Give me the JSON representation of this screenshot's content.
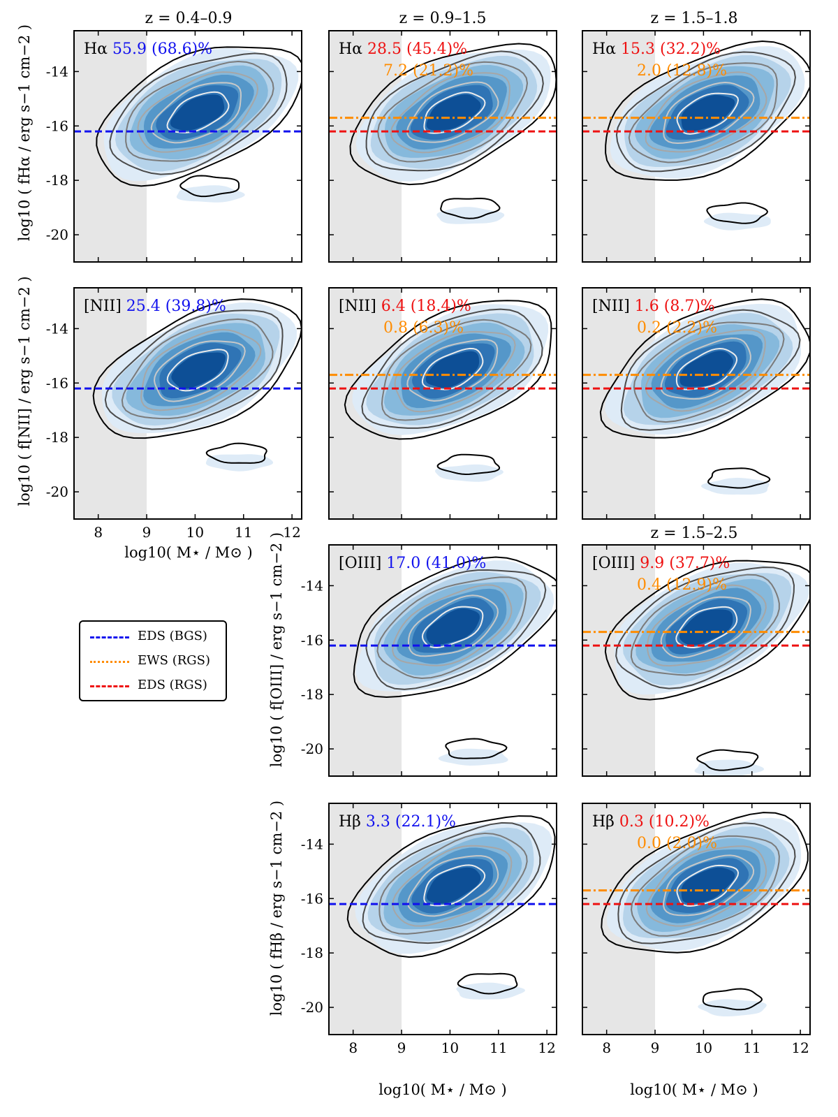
{
  "figure": {
    "colors": {
      "eds_bgs": "#1111ee",
      "ews_rgs": "#ff8c00",
      "eds_rgs": "#ee1111",
      "shade": "#e6e6e6",
      "fill_levels": [
        "#deebf7",
        "#b6d3ea",
        "#86b9dc",
        "#5597c9",
        "#2f74b5",
        "#0d4f96"
      ],
      "contour_levels": [
        "#000000",
        "#4a4a4a",
        "#7a7a7a",
        "#a6a6a6",
        "#c8c8c8",
        "#ececec"
      ]
    },
    "legend": [
      {
        "label": "EDS (BGS)",
        "style": "dashed",
        "color_key": "eds_bgs"
      },
      {
        "label": "EWS (RGS)",
        "style": "dashdot",
        "color_key": "ews_rgs"
      },
      {
        "label": "EDS (RGS)",
        "style": "dashed",
        "color_key": "eds_rgs"
      }
    ],
    "column_titles": [
      "z = 0.4–0.9",
      "z = 0.9–1.5",
      "z = 1.5–1.8"
    ],
    "extra_title": "z = 1.5–2.5",
    "xlabel": "log10( M⋆ / M⊙ )",
    "row_ylabels": [
      "log10 ( fHα / erg s−1 cm−2 )",
      "log10 ( f[NII] / erg s−1 cm−2 )",
      "log10 ( f[OIII] / erg s−1 cm−2 )",
      "log10 ( fHβ / erg s−1 cm−2 )"
    ]
  },
  "chart_data": [
    {
      "type": "contour",
      "panel": "Ha z=0.4-0.9",
      "line": "Hα",
      "primary": "55.9 (68.6)%",
      "primary_color": "eds_bgs",
      "secondary": "",
      "xlim": [
        7.5,
        12.2
      ],
      "ylim": [
        -21,
        -12.5
      ],
      "xticks": [
        8,
        9,
        10,
        11,
        12
      ],
      "yticks": [
        -14,
        -16,
        -18,
        -20
      ],
      "mass_limit": 9.0,
      "thresholds": [
        {
          "y": -16.2,
          "survey": "EDS (BGS)"
        }
      ],
      "blob_center": [
        10.3,
        -18.2
      ]
    },
    {
      "type": "contour",
      "panel": "Ha z=0.9-1.5",
      "line": "Hα",
      "primary": "28.5 (45.4)%",
      "primary_color": "eds_rgs",
      "secondary": "7.2 (21.2)%",
      "xlim": [
        7.5,
        12.2
      ],
      "ylim": [
        -21,
        -12.5
      ],
      "xticks": [
        8,
        9,
        10,
        11,
        12
      ],
      "yticks": [
        -14,
        -16,
        -18,
        -20
      ],
      "mass_limit": 9.0,
      "thresholds": [
        {
          "y": -15.7,
          "survey": "EWS (RGS)"
        },
        {
          "y": -16.2,
          "survey": "EDS (RGS)"
        }
      ],
      "blob_center": [
        10.4,
        -19.0
      ]
    },
    {
      "type": "contour",
      "panel": "Ha z=1.5-1.8",
      "line": "Hα",
      "primary": "15.3 (32.2)%",
      "primary_color": "eds_rgs",
      "secondary": "2.0 (12.8)%",
      "xlim": [
        7.5,
        12.2
      ],
      "ylim": [
        -21,
        -12.5
      ],
      "xticks": [
        8,
        9,
        10,
        11,
        12
      ],
      "yticks": [
        -14,
        -16,
        -18,
        -20
      ],
      "mass_limit": 9.0,
      "thresholds": [
        {
          "y": -15.7,
          "survey": "EWS (RGS)"
        },
        {
          "y": -16.2,
          "survey": "EDS (RGS)"
        }
      ],
      "blob_center": [
        10.7,
        -19.2
      ]
    },
    {
      "type": "contour",
      "panel": "NII z=0.4-0.9",
      "line": "[NII]",
      "primary": "25.4 (39.8)%",
      "primary_color": "eds_bgs",
      "secondary": "",
      "xlim": [
        7.5,
        12.2
      ],
      "ylim": [
        -21,
        -12.5
      ],
      "xticks": [
        8,
        9,
        10,
        11,
        12
      ],
      "yticks": [
        -14,
        -16,
        -18,
        -20
      ],
      "mass_limit": 9.0,
      "thresholds": [
        {
          "y": -16.2,
          "survey": "EDS (BGS)"
        }
      ],
      "blob_center": [
        10.9,
        -18.6
      ]
    },
    {
      "type": "contour",
      "panel": "NII z=0.9-1.5",
      "line": "[NII]",
      "primary": "6.4 (18.4)%",
      "primary_color": "eds_rgs",
      "secondary": "0.8 (6.3)%",
      "xlim": [
        7.5,
        12.2
      ],
      "ylim": [
        -21,
        -12.5
      ],
      "xticks": [
        8,
        9,
        10,
        11,
        12
      ],
      "yticks": [
        -14,
        -16,
        -18,
        -20
      ],
      "mass_limit": 9.0,
      "thresholds": [
        {
          "y": -15.7,
          "survey": "EWS (RGS)"
        },
        {
          "y": -16.2,
          "survey": "EDS (RGS)"
        }
      ],
      "blob_center": [
        10.4,
        -19.0
      ]
    },
    {
      "type": "contour",
      "panel": "NII z=1.5-1.8",
      "line": "[NII]",
      "primary": "1.6 (8.7)%",
      "primary_color": "eds_rgs",
      "secondary": "0.2 (2.2)%",
      "xlim": [
        7.5,
        12.2
      ],
      "ylim": [
        -21,
        -12.5
      ],
      "xticks": [
        8,
        9,
        10,
        11,
        12
      ],
      "yticks": [
        -14,
        -16,
        -18,
        -20
      ],
      "mass_limit": 9.0,
      "thresholds": [
        {
          "y": -15.7,
          "survey": "EWS (RGS)"
        },
        {
          "y": -16.2,
          "survey": "EDS (RGS)"
        }
      ],
      "blob_center": [
        10.7,
        -19.5
      ]
    },
    {
      "type": "contour",
      "panel": "OIII z=0.9-1.5",
      "line": "[OIII]",
      "primary": "17.0 (41.0)%",
      "primary_color": "eds_bgs",
      "secondary": "",
      "xlim": [
        7.5,
        12.2
      ],
      "ylim": [
        -21,
        -12.5
      ],
      "xticks": [
        8,
        9,
        10,
        11,
        12
      ],
      "yticks": [
        -14,
        -16,
        -18,
        -20
      ],
      "mass_limit": 9.0,
      "thresholds": [
        {
          "y": -16.2,
          "survey": "EDS (BGS)"
        }
      ],
      "blob_center": [
        10.5,
        -20.0
      ]
    },
    {
      "type": "contour",
      "panel": "OIII z=1.5-2.5",
      "line": "[OIII]",
      "primary": "9.9 (37.7)%",
      "primary_color": "eds_rgs",
      "secondary": "0.4 (12.9)%",
      "xlim": [
        7.5,
        12.2
      ],
      "ylim": [
        -21,
        -12.5
      ],
      "xticks": [
        8,
        9,
        10,
        11,
        12
      ],
      "yticks": [
        -14,
        -16,
        -18,
        -20
      ],
      "mass_limit": 9.0,
      "thresholds": [
        {
          "y": -15.7,
          "survey": "EWS (RGS)"
        },
        {
          "y": -16.2,
          "survey": "EDS (RGS)"
        }
      ],
      "blob_center": [
        10.5,
        -20.4
      ]
    },
    {
      "type": "contour",
      "panel": "Hb z=0.9-1.5",
      "line": "Hβ",
      "primary": "3.3 (22.1)%",
      "primary_color": "eds_bgs",
      "secondary": "",
      "xlim": [
        7.5,
        12.2
      ],
      "ylim": [
        -21,
        -12.5
      ],
      "xticks": [
        8,
        9,
        10,
        11,
        12
      ],
      "yticks": [
        -14,
        -16,
        -18,
        -20
      ],
      "mass_limit": 9.0,
      "thresholds": [
        {
          "y": -16.2,
          "survey": "EDS (BGS)"
        }
      ],
      "blob_center": [
        10.8,
        -19.1
      ]
    },
    {
      "type": "contour",
      "panel": "Hb z=1.5-2.5",
      "line": "Hβ",
      "primary": "0.3 (10.2)%",
      "primary_color": "eds_rgs",
      "secondary": "0.0 (2.0)%",
      "xlim": [
        7.5,
        12.2
      ],
      "ylim": [
        -21,
        -12.5
      ],
      "xticks": [
        8,
        9,
        10,
        11,
        12
      ],
      "yticks": [
        -14,
        -16,
        -18,
        -20
      ],
      "mass_limit": 9.0,
      "thresholds": [
        {
          "y": -15.7,
          "survey": "EWS (RGS)"
        },
        {
          "y": -16.2,
          "survey": "EDS (RGS)"
        }
      ],
      "blob_center": [
        10.6,
        -19.7
      ]
    }
  ]
}
